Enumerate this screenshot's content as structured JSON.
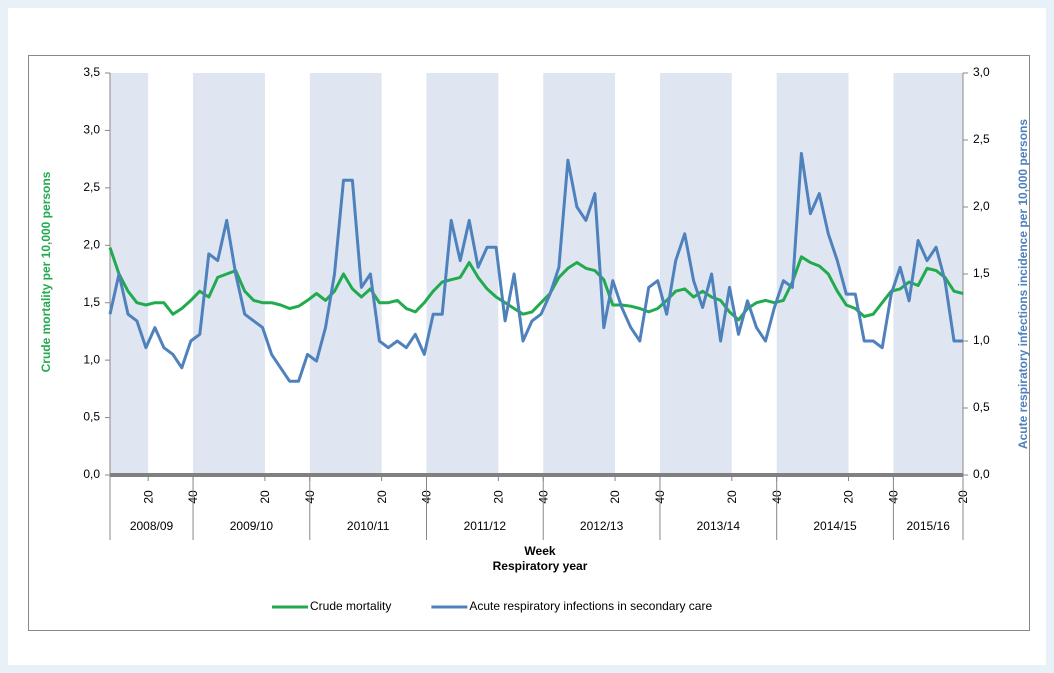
{
  "chart_data": {
    "type": "line",
    "x_label": "Week",
    "x_label_2": "Respiratory year",
    "y_label": "Crude mortality per 10,000 persons",
    "y2_label": "Acute respiratory infections incidence per 10,000 persons",
    "year_groups": [
      "2008/09",
      "2009/10",
      "2010/11",
      "2011/12",
      "2012/13",
      "2013/14",
      "2014/15",
      "2015/16"
    ],
    "x": [
      0,
      4,
      8,
      12,
      16,
      20,
      24,
      28,
      32,
      36,
      40,
      44,
      48,
      52,
      56,
      60,
      64,
      68,
      72,
      76,
      80,
      84,
      88,
      92,
      96,
      100,
      104,
      108,
      112,
      116,
      120,
      124,
      128,
      132,
      136,
      140,
      144,
      148,
      152,
      156,
      160,
      164,
      168,
      172,
      176,
      180,
      184,
      188,
      192,
      196,
      200,
      204,
      208,
      212,
      216,
      220,
      224,
      228,
      232,
      236,
      240,
      244,
      248,
      252,
      256,
      260,
      264,
      268,
      272,
      276,
      280,
      284,
      288,
      292,
      296,
      300,
      304,
      308,
      312,
      316,
      320,
      324,
      328,
      332,
      336,
      340,
      344,
      348,
      352,
      356,
      360,
      364,
      368,
      372,
      376,
      380
    ],
    "xlim": [
      0,
      380
    ],
    "xticks": [
      {
        "value": 17,
        "label": "20"
      },
      {
        "value": 37,
        "label": "40"
      },
      {
        "value": 69,
        "label": "20"
      },
      {
        "value": 89,
        "label": "40"
      },
      {
        "value": 121,
        "label": "20"
      },
      {
        "value": 141,
        "label": "40"
      },
      {
        "value": 173,
        "label": "20"
      },
      {
        "value": 193,
        "label": "40"
      },
      {
        "value": 225,
        "label": "20"
      },
      {
        "value": 245,
        "label": "40"
      },
      {
        "value": 277,
        "label": "20"
      },
      {
        "value": 297,
        "label": "40"
      },
      {
        "value": 329,
        "label": "20"
      },
      {
        "value": 349,
        "label": "40"
      },
      {
        "value": 380,
        "label": "20"
      }
    ],
    "ylim": [
      0,
      3.5
    ],
    "yticks": [
      {
        "value": 0,
        "label": "0,0"
      },
      {
        "value": 0.5,
        "label": "0,5"
      },
      {
        "value": 1,
        "label": "1,0"
      },
      {
        "value": 1.5,
        "label": "1,5"
      },
      {
        "value": 2,
        "label": "2,0"
      },
      {
        "value": 2.5,
        "label": "2,5"
      },
      {
        "value": 3,
        "label": "3,0"
      },
      {
        "value": 3.5,
        "label": "3,5"
      }
    ],
    "y2lim": [
      0,
      3
    ],
    "y2ticks": [
      {
        "value": 0,
        "label": "0,0"
      },
      {
        "value": 0.5,
        "label": "0,5"
      },
      {
        "value": 1,
        "label": "1,0"
      },
      {
        "value": 1.5,
        "label": "1,5"
      },
      {
        "value": 2,
        "label": "2,0"
      },
      {
        "value": 2.5,
        "label": "2,5"
      },
      {
        "value": 3,
        "label": "3,0"
      }
    ],
    "series": [
      {
        "name": "Crude mortality",
        "color": "#22aa4e",
        "values": [
          1.98,
          1.75,
          1.6,
          1.5,
          1.48,
          1.5,
          1.5,
          1.4,
          1.45,
          1.52,
          1.6,
          1.55,
          1.72,
          1.75,
          1.78,
          1.6,
          1.52,
          1.5,
          1.5,
          1.48,
          1.45,
          1.47,
          1.52,
          1.58,
          1.52,
          1.6,
          1.75,
          1.62,
          1.55,
          1.62,
          1.5,
          1.5,
          1.52,
          1.45,
          1.42,
          1.5,
          1.6,
          1.68,
          1.7,
          1.72,
          1.85,
          1.72,
          1.62,
          1.55,
          1.5,
          1.45,
          1.4,
          1.42,
          1.5,
          1.58,
          1.72,
          1.8,
          1.85,
          1.8,
          1.78,
          1.7,
          1.48,
          1.48,
          1.47,
          1.45,
          1.42,
          1.45,
          1.52,
          1.6,
          1.62,
          1.55,
          1.6,
          1.55,
          1.52,
          1.42,
          1.35,
          1.45,
          1.5,
          1.52,
          1.5,
          1.52,
          1.68,
          1.9,
          1.85,
          1.82,
          1.75,
          1.6,
          1.48,
          1.45,
          1.38,
          1.4,
          1.5,
          1.6,
          1.62,
          1.68,
          1.65,
          1.8,
          1.78,
          1.72,
          1.6,
          1.58
        ]
      },
      {
        "name": "Acute respiratory infections in secondary care",
        "color": "#4f81bd",
        "axis": "y2",
        "values": [
          1.2,
          1.5,
          1.2,
          1.15,
          0.95,
          1.1,
          0.95,
          0.9,
          0.8,
          1.0,
          1.05,
          1.65,
          1.6,
          1.9,
          1.5,
          1.2,
          1.15,
          1.1,
          0.9,
          0.8,
          0.7,
          0.7,
          0.9,
          0.85,
          1.1,
          1.5,
          2.2,
          2.2,
          1.4,
          1.5,
          1.0,
          0.95,
          1.0,
          0.95,
          1.05,
          0.9,
          1.2,
          1.2,
          1.9,
          1.6,
          1.9,
          1.55,
          1.7,
          1.7,
          1.15,
          1.5,
          1.0,
          1.15,
          1.2,
          1.35,
          1.55,
          2.35,
          2.0,
          1.9,
          2.1,
          1.1,
          1.45,
          1.25,
          1.1,
          1.0,
          1.4,
          1.45,
          1.2,
          1.6,
          1.8,
          1.45,
          1.25,
          1.5,
          1.0,
          1.4,
          1.05,
          1.3,
          1.1,
          1.0,
          1.25,
          1.45,
          1.4,
          2.4,
          1.95,
          2.1,
          1.8,
          1.6,
          1.35,
          1.35,
          1.0,
          1.0,
          0.95,
          1.35,
          1.55,
          1.3,
          1.75,
          1.6,
          1.7,
          1.45,
          1.0,
          1.0
        ]
      }
    ]
  }
}
